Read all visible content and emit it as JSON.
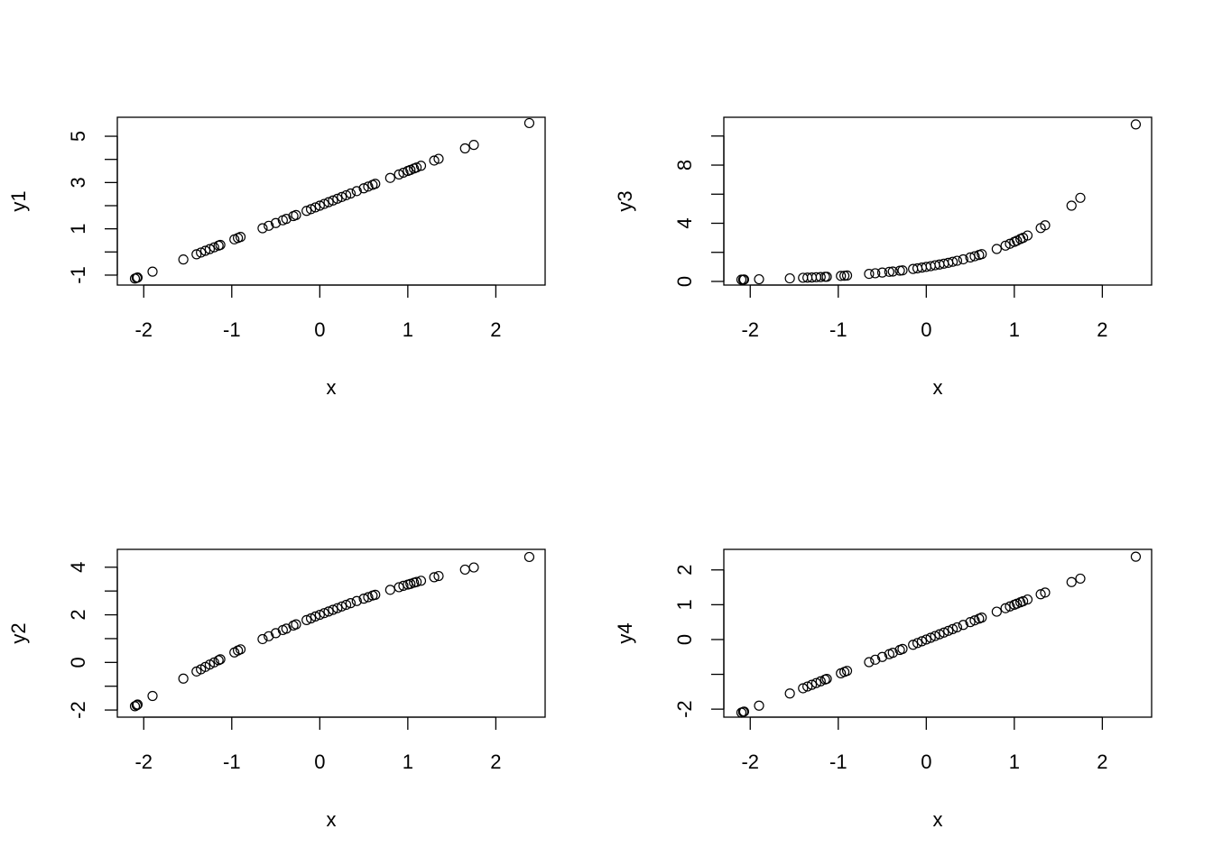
{
  "chart_data": [
    {
      "type": "scatter",
      "xlabel": "x",
      "ylabel": "y1",
      "color": "#000000",
      "x": [
        -2.1,
        -2.08,
        -2.07,
        -1.9,
        -1.55,
        -1.4,
        -1.35,
        -1.3,
        -1.25,
        -1.2,
        -1.15,
        -1.13,
        -0.97,
        -0.93,
        -0.9,
        -0.65,
        -0.58,
        -0.5,
        -0.42,
        -0.38,
        -0.3,
        -0.27,
        -0.15,
        -0.1,
        -0.05,
        0,
        0.05,
        0.1,
        0.15,
        0.2,
        0.25,
        0.3,
        0.35,
        0.42,
        0.5,
        0.55,
        0.6,
        0.63,
        0.8,
        0.9,
        0.95,
        1.0,
        1.03,
        1.07,
        1.1,
        1.15,
        1.3,
        1.35,
        1.65,
        1.75,
        2.38
      ],
      "values": [
        -1.15,
        -1.12,
        -1.105,
        -0.85,
        -0.325,
        -0.1,
        -0.025,
        0.05,
        0.125,
        0.2,
        0.275,
        0.305,
        0.545,
        0.605,
        0.65,
        1.025,
        1.13,
        1.25,
        1.37,
        1.43,
        1.55,
        1.595,
        1.775,
        1.85,
        1.925,
        2,
        2.075,
        2.15,
        2.225,
        2.3,
        2.375,
        2.45,
        2.525,
        2.63,
        2.75,
        2.825,
        2.9,
        2.945,
        3.2,
        3.35,
        3.425,
        3.5,
        3.545,
        3.605,
        3.65,
        3.725,
        3.95,
        4.025,
        4.475,
        4.625,
        5.57
      ],
      "xlim": [
        -2.3,
        2.56
      ],
      "xticks": [
        -2,
        -1,
        0,
        1,
        2
      ],
      "ylim": [
        -1.43,
        5.82
      ],
      "yticks": [
        -1,
        {
          "value": 0,
          "label": null
        },
        1,
        {
          "value": 2,
          "label": null
        },
        3,
        {
          "value": 4,
          "label": null
        },
        5
      ]
    },
    {
      "type": "scatter",
      "xlabel": "x",
      "ylabel": "y3",
      "color": "#000000",
      "x": [
        -2.1,
        -2.08,
        -2.07,
        -1.9,
        -1.55,
        -1.4,
        -1.35,
        -1.3,
        -1.25,
        -1.2,
        -1.15,
        -1.13,
        -0.97,
        -0.93,
        -0.9,
        -0.65,
        -0.58,
        -0.5,
        -0.42,
        -0.38,
        -0.3,
        -0.27,
        -0.15,
        -0.1,
        -0.05,
        0,
        0.05,
        0.1,
        0.15,
        0.2,
        0.25,
        0.3,
        0.35,
        0.42,
        0.5,
        0.55,
        0.6,
        0.63,
        0.8,
        0.9,
        0.95,
        1.0,
        1.03,
        1.07,
        1.1,
        1.15,
        1.3,
        1.35,
        1.65,
        1.75,
        2.38
      ],
      "values": [
        0.12,
        0.12,
        0.13,
        0.15,
        0.21,
        0.25,
        0.26,
        0.27,
        0.29,
        0.3,
        0.32,
        0.32,
        0.38,
        0.39,
        0.41,
        0.52,
        0.56,
        0.61,
        0.66,
        0.68,
        0.74,
        0.76,
        0.86,
        0.9,
        0.95,
        1,
        1.05,
        1.11,
        1.16,
        1.22,
        1.28,
        1.35,
        1.42,
        1.52,
        1.65,
        1.73,
        1.82,
        1.88,
        2.23,
        2.46,
        2.59,
        2.72,
        2.8,
        2.92,
        3.0,
        3.16,
        3.67,
        3.86,
        5.21,
        5.75,
        10.8
      ],
      "xlim": [
        -2.3,
        2.56
      ],
      "xticks": [
        -2,
        -1,
        0,
        1,
        2
      ],
      "ylim": [
        -0.25,
        11.29
      ],
      "yticks": [
        0,
        {
          "value": 2,
          "label": null
        },
        4,
        {
          "value": 6,
          "label": null
        },
        8,
        {
          "value": 10,
          "label": null
        }
      ]
    },
    {
      "type": "scatter",
      "xlabel": "x",
      "ylabel": "y2",
      "color": "#000000",
      "x": [
        -2.1,
        -2.08,
        -2.07,
        -1.9,
        -1.55,
        -1.4,
        -1.35,
        -1.3,
        -1.25,
        -1.2,
        -1.15,
        -1.13,
        -0.97,
        -0.93,
        -0.9,
        -0.65,
        -0.58,
        -0.5,
        -0.42,
        -0.38,
        -0.3,
        -0.27,
        -0.15,
        -0.1,
        -0.05,
        0,
        0.05,
        0.1,
        0.15,
        0.2,
        0.25,
        0.3,
        0.35,
        0.42,
        0.5,
        0.55,
        0.6,
        0.63,
        0.8,
        0.9,
        0.95,
        1.0,
        1.03,
        1.07,
        1.1,
        1.15,
        1.3,
        1.35,
        1.65,
        1.75,
        2.38
      ],
      "values": [
        -1.84,
        -1.8,
        -1.77,
        -1.41,
        -0.68,
        -0.38,
        -0.29,
        -0.19,
        -0.09,
        0.0,
        0.09,
        0.13,
        0.42,
        0.5,
        0.55,
        0.98,
        1.1,
        1.23,
        1.36,
        1.42,
        1.55,
        1.6,
        1.78,
        1.85,
        1.93,
        2.0,
        2.07,
        2.14,
        2.21,
        2.28,
        2.35,
        2.42,
        2.49,
        2.58,
        2.68,
        2.74,
        2.81,
        2.84,
        3.05,
        3.16,
        3.22,
        3.27,
        3.3,
        3.35,
        3.38,
        3.43,
        3.58,
        3.63,
        3.9,
        3.99,
        4.43
      ],
      "xlim": [
        -2.3,
        2.56
      ],
      "xticks": [
        -2,
        -1,
        0,
        1,
        2
      ],
      "ylim": [
        -2.3,
        4.75
      ],
      "yticks": [
        -2,
        {
          "value": -1,
          "label": null
        },
        0,
        {
          "value": 1,
          "label": null
        },
        2,
        {
          "value": 3,
          "label": null
        },
        4
      ]
    },
    {
      "type": "scatter",
      "xlabel": "x",
      "ylabel": "y4",
      "color": "#000000",
      "x": [
        -2.1,
        -2.08,
        -2.07,
        -1.9,
        -1.55,
        -1.4,
        -1.35,
        -1.3,
        -1.25,
        -1.2,
        -1.15,
        -1.13,
        -0.97,
        -0.93,
        -0.9,
        -0.65,
        -0.58,
        -0.5,
        -0.42,
        -0.38,
        -0.3,
        -0.27,
        -0.15,
        -0.1,
        -0.05,
        0,
        0.05,
        0.1,
        0.15,
        0.2,
        0.25,
        0.3,
        0.35,
        0.42,
        0.5,
        0.55,
        0.6,
        0.63,
        0.8,
        0.9,
        0.95,
        1.0,
        1.03,
        1.07,
        1.1,
        1.15,
        1.3,
        1.35,
        1.65,
        1.75,
        2.38
      ],
      "values": [
        -2.1,
        -2.08,
        -2.07,
        -1.9,
        -1.55,
        -1.4,
        -1.35,
        -1.3,
        -1.25,
        -1.2,
        -1.15,
        -1.13,
        -0.97,
        -0.93,
        -0.9,
        -0.65,
        -0.58,
        -0.5,
        -0.42,
        -0.38,
        -0.3,
        -0.27,
        -0.15,
        -0.1,
        -0.05,
        0,
        0.05,
        0.1,
        0.15,
        0.2,
        0.25,
        0.3,
        0.35,
        0.42,
        0.5,
        0.55,
        0.6,
        0.63,
        0.8,
        0.9,
        0.95,
        1.0,
        1.03,
        1.07,
        1.1,
        1.15,
        1.3,
        1.35,
        1.65,
        1.75,
        2.38
      ],
      "xlim": [
        -2.3,
        2.56
      ],
      "xticks": [
        -2,
        -1,
        0,
        1,
        2
      ],
      "ylim": [
        -2.23,
        2.59
      ],
      "yticks": [
        -2,
        {
          "value": -1,
          "label": null
        },
        0,
        1,
        2
      ]
    }
  ]
}
